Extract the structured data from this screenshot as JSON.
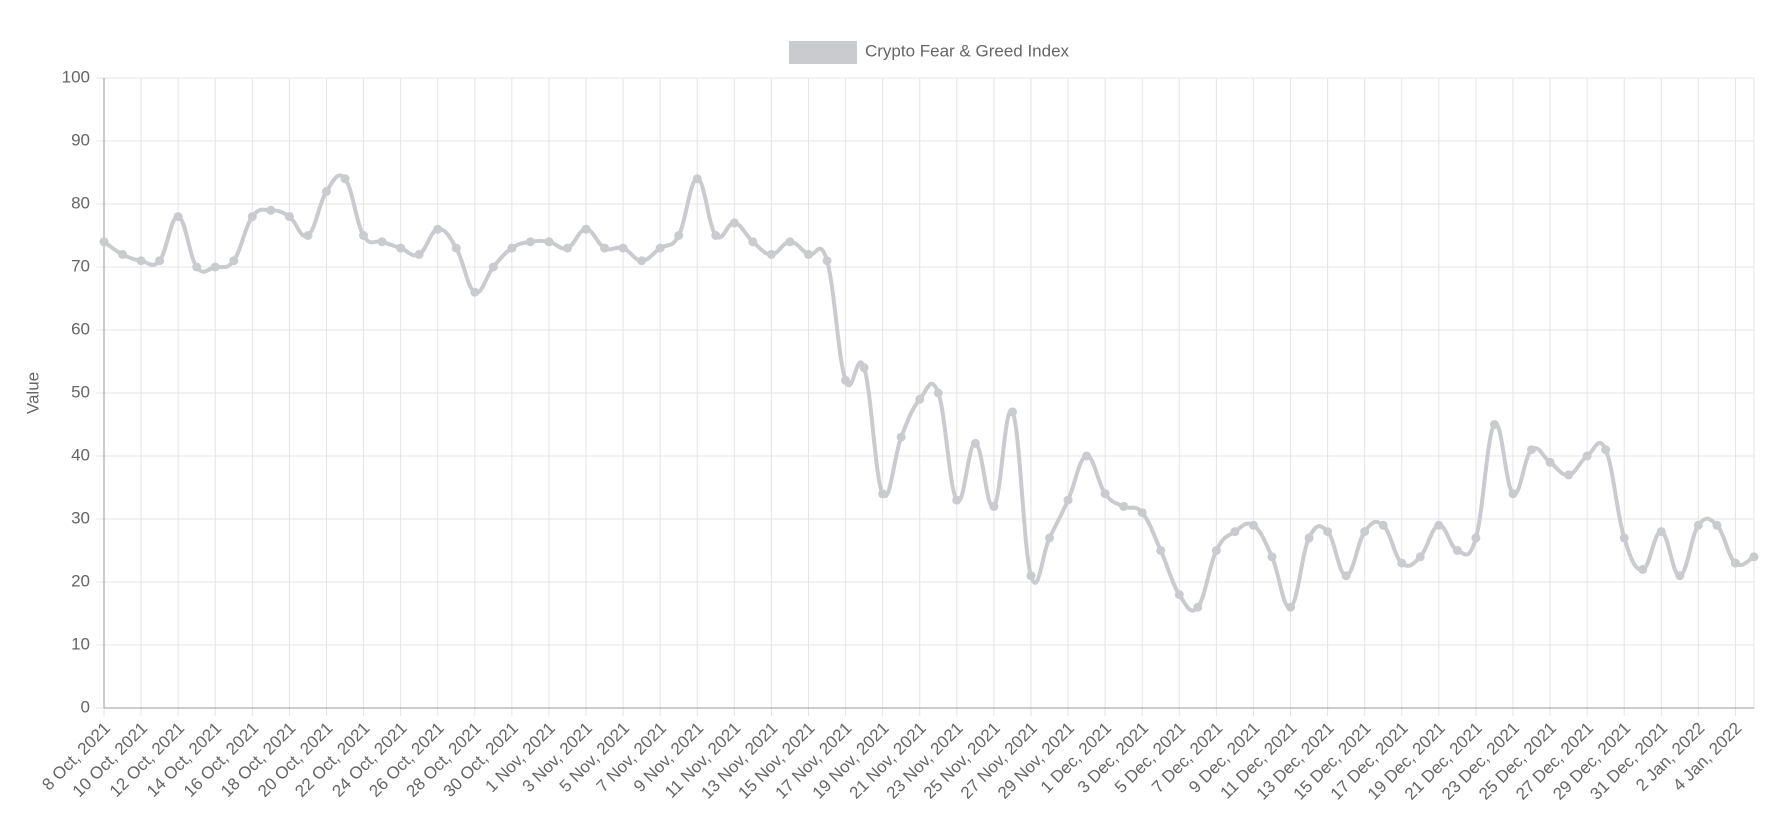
{
  "chart_data": {
    "type": "line",
    "categories": [
      "8 Oct, 2021",
      null,
      "10 Oct, 2021",
      null,
      "12 Oct, 2021",
      null,
      "14 Oct, 2021",
      null,
      "16 Oct, 2021",
      null,
      "18 Oct, 2021",
      null,
      "20 Oct, 2021",
      null,
      "22 Oct, 2021",
      null,
      "24 Oct, 2021",
      null,
      "26 Oct, 2021",
      null,
      "28 Oct, 2021",
      null,
      "30 Oct, 2021",
      null,
      "1 Nov, 2021",
      null,
      "3 Nov, 2021",
      null,
      "5 Nov, 2021",
      null,
      "7 Nov, 2021",
      null,
      "9 Nov, 2021",
      null,
      "11 Nov, 2021",
      null,
      "13 Nov, 2021",
      null,
      "15 Nov, 2021",
      null,
      "17 Nov, 2021",
      null,
      "19 Nov, 2021",
      null,
      "21 Nov, 2021",
      null,
      "23 Nov, 2021",
      null,
      "25 Nov, 2021",
      null,
      "27 Nov, 2021",
      null,
      "29 Nov, 2021",
      null,
      "1 Dec, 2021",
      null,
      "3 Dec, 2021",
      null,
      "5 Dec, 2021",
      null,
      "7 Dec, 2021",
      null,
      "9 Dec, 2021",
      null,
      "11 Dec, 2021",
      null,
      "13 Dec, 2021",
      null,
      "15 Dec, 2021",
      null,
      "17 Dec, 2021",
      null,
      "19 Dec, 2021",
      null,
      "21 Dec, 2021",
      null,
      "23 Dec, 2021",
      null,
      "25 Dec, 2021",
      null,
      "27 Dec, 2021",
      null,
      "29 Dec, 2021",
      null,
      "31 Dec, 2021",
      null,
      "2 Jan, 2022",
      null,
      "4 Jan, 2022",
      null
    ],
    "series": [
      {
        "name": "Crypto Fear & Greed Index",
        "color": "#c9cbcf",
        "values": [
          74,
          72,
          71,
          71,
          78,
          70,
          70,
          71,
          78,
          79,
          78,
          75,
          82,
          84,
          75,
          74,
          73,
          72,
          76,
          73,
          66,
          70,
          73,
          74,
          74,
          73,
          76,
          73,
          73,
          71,
          73,
          75,
          84,
          75,
          77,
          74,
          72,
          74,
          72,
          71,
          52,
          54,
          34,
          43,
          49,
          50,
          33,
          42,
          32,
          47,
          21,
          27,
          33,
          40,
          34,
          32,
          31,
          25,
          18,
          16,
          25,
          28,
          29,
          24,
          16,
          27,
          28,
          21,
          28,
          29,
          23,
          24,
          29,
          25,
          27,
          45,
          34,
          41,
          39,
          37,
          40,
          41,
          27,
          22,
          28,
          21,
          29,
          29,
          23,
          24
        ]
      }
    ],
    "y_label": "Value",
    "ylim": [
      0,
      100
    ],
    "yticks": [
      0,
      10,
      20,
      30,
      40,
      50,
      60,
      70,
      80,
      90,
      100
    ],
    "grid": true,
    "legend": "top"
  }
}
